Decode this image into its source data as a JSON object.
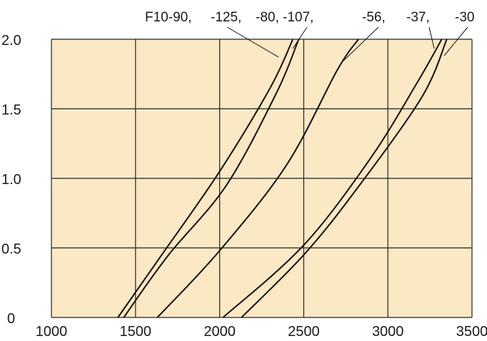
{
  "chart_data": {
    "type": "line",
    "title": "",
    "xlabel": "",
    "ylabel": "",
    "xlim": [
      1000,
      3500
    ],
    "ylim": [
      0,
      2.0
    ],
    "x_ticks": [
      1000,
      1500,
      2000,
      2500,
      3000,
      3500
    ],
    "y_ticks": [
      0,
      0.5,
      1.0,
      1.5,
      2.0
    ],
    "x_tick_labels": [
      "1000",
      "1500",
      "2000",
      "2500",
      "3000",
      "3500"
    ],
    "y_tick_labels": [
      "0",
      "0.5",
      "1.0",
      "1.5",
      "2.0"
    ],
    "grid": true,
    "legend": "none",
    "plot_background": "#fbe8c4",
    "line_color": "#111111",
    "series": [
      {
        "name": "F10-90,",
        "x": [
          1395,
          1650,
          2000,
          2300,
          2435
        ],
        "y": [
          0,
          0.44,
          1.05,
          1.65,
          2.0
        ]
      },
      {
        "name": "-125,",
        "x": [
          1430,
          1690,
          2040,
          2340,
          2470
        ],
        "y": [
          0,
          0.44,
          0.95,
          1.62,
          2.0
        ]
      },
      {
        "name": "-80, -107,",
        "x": [
          1630,
          2000,
          2400,
          2700,
          2825
        ],
        "y": [
          0,
          0.48,
          1.1,
          1.78,
          2.0
        ]
      },
      {
        "name": "-56,",
        "x": [
          2020,
          2500,
          2900,
          3180,
          3320
        ],
        "y": [
          0,
          0.52,
          1.15,
          1.7,
          2.0
        ]
      },
      {
        "name": "-37,",
        "x": [
          2130,
          2500,
          2800,
          3200,
          3350
        ],
        "y": [
          0,
          0.45,
          0.9,
          1.58,
          2.0
        ]
      }
    ],
    "annotations": [
      {
        "text": "F10-90,",
        "series": 0
      },
      {
        "text": "-125,",
        "series": 1
      },
      {
        "text": "-80, -107,",
        "series": 2
      },
      {
        "text": "-56,",
        "series": 3
      },
      {
        "text": "-37,",
        "series": 4
      },
      {
        "text": "-30",
        "series": 4
      }
    ]
  }
}
